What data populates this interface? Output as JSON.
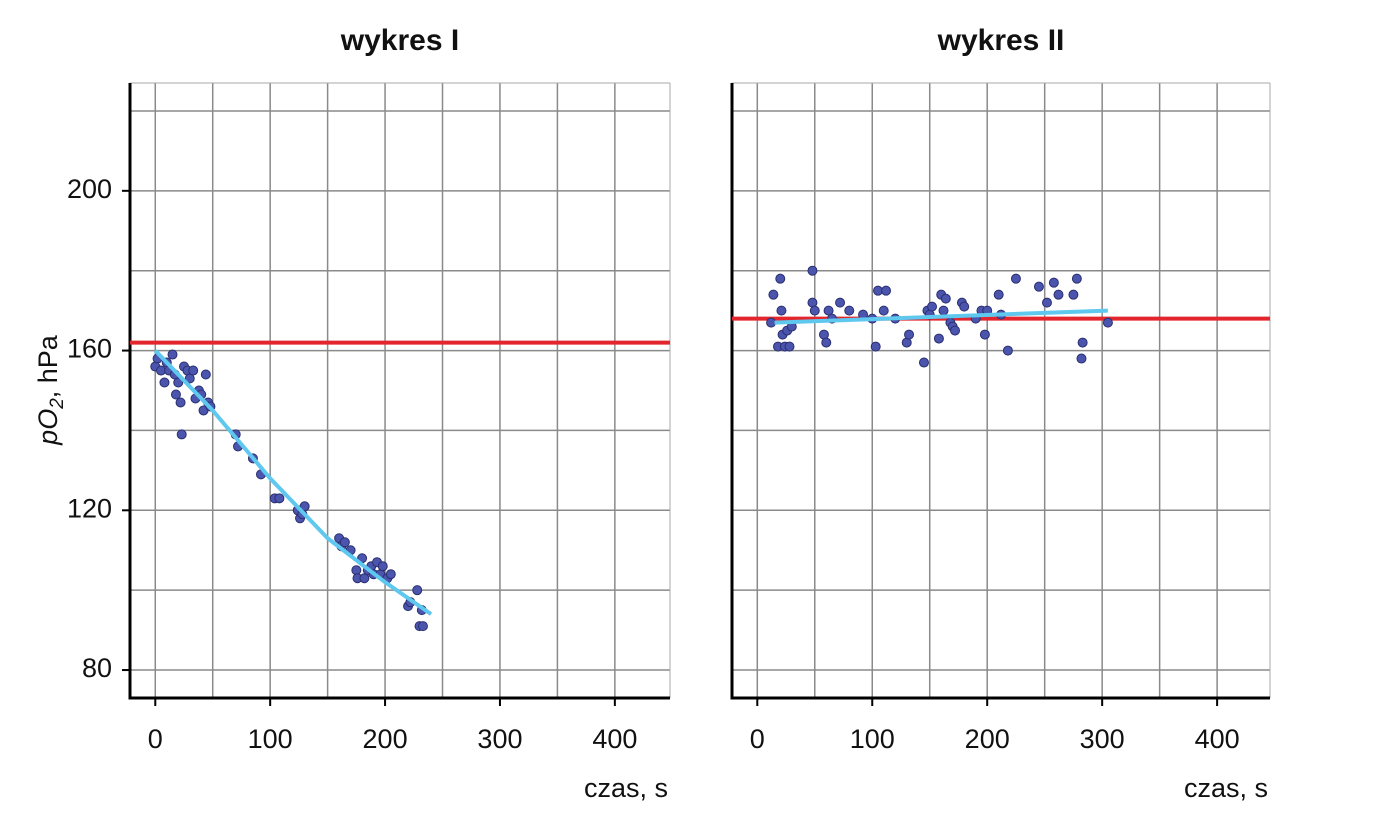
{
  "chart_data": [
    {
      "type": "scatter",
      "title": "wykres I",
      "y_label": [
        "pO",
        "2",
        ", hPa"
      ],
      "x_label": "czas, s",
      "xlim": [
        -22,
        448
      ],
      "ylim": [
        73,
        227
      ],
      "xticks": [
        0,
        100,
        200,
        300,
        400
      ],
      "yticks": [
        80,
        120,
        160,
        200
      ],
      "xgrid": [
        0,
        50,
        100,
        150,
        200,
        250,
        300,
        350,
        400
      ],
      "ygrid": [
        80,
        100,
        120,
        140,
        160,
        180,
        200,
        220
      ],
      "color": "#4b55ad",
      "x": [
        0,
        2,
        5,
        8,
        10,
        12,
        15,
        17,
        18,
        20,
        22,
        23,
        25,
        28,
        30,
        33,
        35,
        38,
        40,
        42,
        44,
        46,
        48,
        70,
        72,
        85,
        92,
        104,
        108,
        124,
        126,
        128,
        130,
        160,
        162,
        165,
        170,
        175,
        176,
        180,
        182,
        185,
        188,
        190,
        193,
        196,
        198,
        202,
        205,
        220,
        222,
        228,
        230,
        232,
        233
      ],
      "y": [
        156,
        158,
        155,
        152,
        157,
        155,
        159,
        154,
        149,
        152,
        147,
        139,
        156,
        155,
        153,
        155,
        148,
        150,
        149,
        145,
        154,
        147,
        146,
        139,
        136,
        133,
        129,
        123,
        123,
        120,
        118,
        119,
        121,
        113,
        111,
        112,
        110,
        105,
        103,
        108,
        103,
        105,
        106,
        104,
        107,
        104,
        106,
        103,
        104,
        96,
        97,
        100,
        91,
        95,
        91
      ],
      "reference_line": 162,
      "reference_color": "#e3262e",
      "fit": {
        "x": [
          0,
          50,
          100,
          150,
          200,
          240
        ],
        "y": [
          160,
          145,
          128,
          113,
          102,
          94
        ]
      },
      "fit_color": "#5ec8ef"
    },
    {
      "type": "scatter",
      "title": "wykres II",
      "x_label": "czas, s",
      "xlim": [
        -22,
        446
      ],
      "ylim": [
        73,
        227
      ],
      "xticks": [
        0,
        100,
        200,
        300,
        400
      ],
      "xgrid": [
        0,
        50,
        100,
        150,
        200,
        250,
        300,
        350,
        400
      ],
      "ygrid": [
        80,
        100,
        120,
        140,
        160,
        180,
        200,
        220
      ],
      "color": "#4b55ad",
      "x": [
        12,
        14,
        18,
        20,
        21,
        22,
        24,
        26,
        28,
        30,
        48,
        48,
        50,
        58,
        60,
        62,
        65,
        72,
        80,
        92,
        100,
        103,
        105,
        110,
        112,
        120,
        130,
        132,
        145,
        148,
        150,
        152,
        158,
        160,
        162,
        164,
        168,
        170,
        172,
        178,
        180,
        190,
        195,
        198,
        200,
        210,
        212,
        218,
        225,
        245,
        252,
        258,
        262,
        275,
        278,
        282,
        283,
        305
      ],
      "y": [
        167,
        174,
        161,
        178,
        170,
        164,
        161,
        165,
        161,
        166,
        180,
        172,
        170,
        164,
        162,
        170,
        168,
        172,
        170,
        169,
        168,
        161,
        175,
        170,
        175,
        168,
        162,
        164,
        157,
        170,
        169,
        171,
        163,
        174,
        170,
        173,
        167,
        166,
        165,
        172,
        171,
        168,
        170,
        164,
        170,
        174,
        169,
        160,
        178,
        176,
        172,
        177,
        174,
        174,
        178,
        158,
        162,
        167
      ],
      "reference_line": 168,
      "reference_color": "#e3262e",
      "fit": {
        "x": [
          15,
          305
        ],
        "y": [
          167,
          170
        ]
      },
      "fit_color": "#5ec8ef"
    }
  ]
}
